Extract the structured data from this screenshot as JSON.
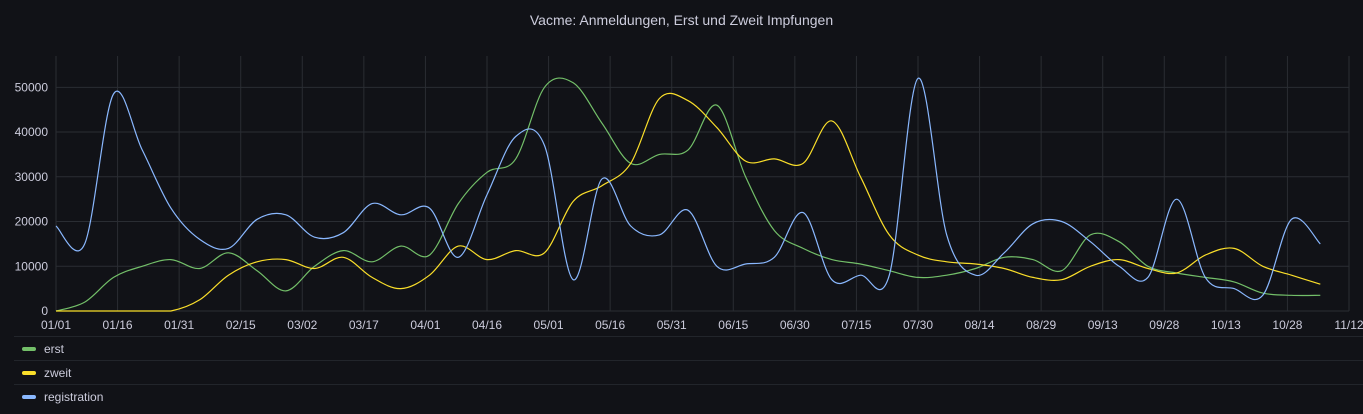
{
  "chart_data": {
    "type": "line",
    "title": "Vacme: Anmeldungen, Erst und Zweit Impfungen",
    "ylim": [
      0,
      57000
    ],
    "yticks": [
      0,
      10000,
      20000,
      30000,
      40000,
      50000
    ],
    "xticks": [
      "01/01",
      "01/16",
      "01/31",
      "02/15",
      "03/02",
      "03/17",
      "04/01",
      "04/16",
      "05/01",
      "05/16",
      "05/31",
      "06/15",
      "06/30",
      "07/15",
      "07/30",
      "08/14",
      "08/29",
      "09/13",
      "09/28",
      "10/13",
      "10/28",
      "11/12"
    ],
    "x_unit": "days since 01/01",
    "xlim": [
      0,
      315
    ],
    "grid": true,
    "legend_position": "bottom",
    "series": [
      {
        "name": "erst",
        "color": "#73bf69",
        "points": [
          [
            0,
            0
          ],
          [
            7,
            2000
          ],
          [
            14,
            7500
          ],
          [
            21,
            10000
          ],
          [
            28,
            11500
          ],
          [
            35,
            9500
          ],
          [
            42,
            13000
          ],
          [
            49,
            9000
          ],
          [
            56,
            4500
          ],
          [
            63,
            10000
          ],
          [
            70,
            13500
          ],
          [
            77,
            11000
          ],
          [
            84,
            14500
          ],
          [
            91,
            12500
          ],
          [
            98,
            24000
          ],
          [
            105,
            31000
          ],
          [
            112,
            34000
          ],
          [
            119,
            50000
          ],
          [
            126,
            51000
          ],
          [
            133,
            42000
          ],
          [
            140,
            33000
          ],
          [
            147,
            35000
          ],
          [
            154,
            36000
          ],
          [
            161,
            46000
          ],
          [
            168,
            30000
          ],
          [
            175,
            18000
          ],
          [
            182,
            14000
          ],
          [
            189,
            11500
          ],
          [
            196,
            10500
          ],
          [
            203,
            9000
          ],
          [
            210,
            7500
          ],
          [
            217,
            8000
          ],
          [
            224,
            9500
          ],
          [
            231,
            12000
          ],
          [
            238,
            11500
          ],
          [
            245,
            9000
          ],
          [
            252,
            17000
          ],
          [
            259,
            15500
          ],
          [
            266,
            10000
          ],
          [
            273,
            8500
          ],
          [
            280,
            7500
          ],
          [
            287,
            6500
          ],
          [
            294,
            4000
          ],
          [
            301,
            3500
          ],
          [
            308,
            3500
          ]
        ]
      },
      {
        "name": "zweit",
        "color": "#fade2a",
        "points": [
          [
            0,
            0
          ],
          [
            7,
            0
          ],
          [
            14,
            0
          ],
          [
            21,
            0
          ],
          [
            28,
            0
          ],
          [
            35,
            2500
          ],
          [
            42,
            8000
          ],
          [
            49,
            11000
          ],
          [
            56,
            11500
          ],
          [
            63,
            9500
          ],
          [
            70,
            12000
          ],
          [
            77,
            7500
          ],
          [
            84,
            5000
          ],
          [
            91,
            8000
          ],
          [
            98,
            14500
          ],
          [
            105,
            11500
          ],
          [
            112,
            13500
          ],
          [
            119,
            13000
          ],
          [
            126,
            24500
          ],
          [
            133,
            28000
          ],
          [
            140,
            33000
          ],
          [
            147,
            47500
          ],
          [
            154,
            47000
          ],
          [
            161,
            41000
          ],
          [
            168,
            33500
          ],
          [
            175,
            34000
          ],
          [
            182,
            33000
          ],
          [
            189,
            42500
          ],
          [
            196,
            30000
          ],
          [
            203,
            17000
          ],
          [
            210,
            12500
          ],
          [
            217,
            11000
          ],
          [
            224,
            10500
          ],
          [
            231,
            9500
          ],
          [
            238,
            7500
          ],
          [
            245,
            7000
          ],
          [
            252,
            10000
          ],
          [
            259,
            11500
          ],
          [
            266,
            9500
          ],
          [
            273,
            8500
          ],
          [
            280,
            12500
          ],
          [
            287,
            14000
          ],
          [
            294,
            10000
          ],
          [
            301,
            8000
          ],
          [
            308,
            6000
          ]
        ]
      },
      {
        "name": "registration",
        "color": "#8ab8ff",
        "points": [
          [
            0,
            19000
          ],
          [
            7,
            15000
          ],
          [
            14,
            48500
          ],
          [
            21,
            36000
          ],
          [
            28,
            23000
          ],
          [
            35,
            16000
          ],
          [
            42,
            14000
          ],
          [
            49,
            20500
          ],
          [
            56,
            21500
          ],
          [
            63,
            16500
          ],
          [
            70,
            17500
          ],
          [
            77,
            24000
          ],
          [
            84,
            21500
          ],
          [
            91,
            23000
          ],
          [
            98,
            12000
          ],
          [
            105,
            26000
          ],
          [
            112,
            39000
          ],
          [
            119,
            37000
          ],
          [
            126,
            7000
          ],
          [
            133,
            29500
          ],
          [
            140,
            19000
          ],
          [
            147,
            17000
          ],
          [
            154,
            22500
          ],
          [
            161,
            10000
          ],
          [
            168,
            10500
          ],
          [
            175,
            12000
          ],
          [
            182,
            22000
          ],
          [
            189,
            7000
          ],
          [
            196,
            8000
          ],
          [
            203,
            8000
          ],
          [
            210,
            52000
          ],
          [
            217,
            17000
          ],
          [
            224,
            8000
          ],
          [
            231,
            13000
          ],
          [
            238,
            19500
          ],
          [
            245,
            20000
          ],
          [
            252,
            15500
          ],
          [
            259,
            10000
          ],
          [
            266,
            7500
          ],
          [
            273,
            25000
          ],
          [
            280,
            7500
          ],
          [
            287,
            5000
          ],
          [
            294,
            3500
          ],
          [
            301,
            20500
          ],
          [
            308,
            15000
          ]
        ]
      }
    ]
  }
}
